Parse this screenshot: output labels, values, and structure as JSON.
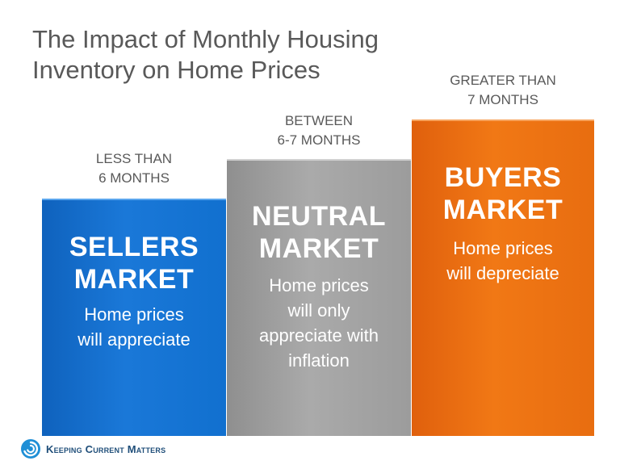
{
  "title": {
    "line1": "The Impact of Monthly Housing",
    "line2": "Inventory on Home Prices"
  },
  "chart_data": {
    "type": "bar",
    "categories": [
      "LESS THAN 6 MONTHS",
      "BETWEEN 6-7 MONTHS",
      "GREATER THAN 7 MONTHS"
    ],
    "bars": [
      {
        "caption_line1": "LESS THAN",
        "caption_line2": "6 MONTHS",
        "heading_line1": "SELLERS",
        "heading_line2": "MARKET",
        "body_line1": "Home prices",
        "body_line2": "will appreciate",
        "body_line3": "",
        "body_line4": "",
        "color": "#1170cf"
      },
      {
        "caption_line1": "BETWEEN",
        "caption_line2": "6-7 MONTHS",
        "heading_line1": "NEUTRAL",
        "heading_line2": "MARKET",
        "body_line1": "Home prices",
        "body_line2": "will only",
        "body_line3": "appreciate with",
        "body_line4": "inflation",
        "color": "#a3a3a3"
      },
      {
        "caption_line1": "GREATER THAN",
        "caption_line2": "7 MONTHS",
        "heading_line1": "BUYERS",
        "heading_line2": "MARKET",
        "body_line1": "Home prices",
        "body_line2": "will depreciate",
        "body_line3": "",
        "body_line4": "",
        "color": "#ee7314"
      }
    ]
  },
  "logo": {
    "text": "Keeping Current Matters",
    "icon": "spiral-logo-icon",
    "color": "#1f4e79"
  }
}
